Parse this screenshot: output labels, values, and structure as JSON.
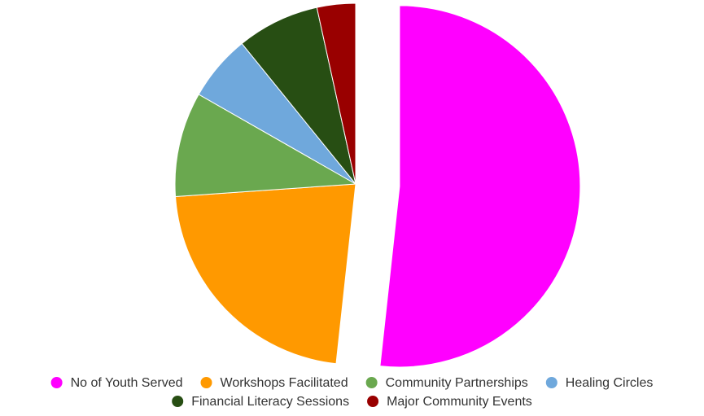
{
  "chart_data": {
    "type": "pie",
    "title": "",
    "slices": [
      {
        "label": "No of Youth Served",
        "value": 52.5,
        "color": "#ff00ff",
        "exploded": true
      },
      {
        "label": "Workshops Facilitated",
        "value": 22.5,
        "color": "#ff9900",
        "exploded": false
      },
      {
        "label": "Community Partnerships",
        "value": 9.5,
        "color": "#6aa84f",
        "exploded": false
      },
      {
        "label": "Healing Circles",
        "value": 6.0,
        "color": "#6fa8dc",
        "exploded": false
      },
      {
        "label": "Financial Literacy Sessions",
        "value": 7.5,
        "color": "#274e13",
        "exploded": false
      },
      {
        "label": "Major Community Events",
        "value": 3.5,
        "color": "#990000",
        "exploded": false
      }
    ],
    "legend_position": "bottom"
  }
}
